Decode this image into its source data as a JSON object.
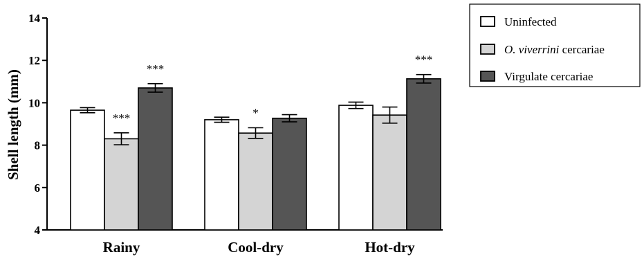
{
  "chart_data": {
    "type": "bar",
    "categories": [
      "Rainy",
      "Cool-dry",
      "Hot-dry"
    ],
    "ylabel": "Shell length (mm)",
    "ylim": [
      4,
      14
    ],
    "yticks": [
      4,
      6,
      8,
      10,
      12,
      14
    ],
    "grid": false,
    "legend_position": "top-right",
    "series": [
      {
        "name": "Uninfected",
        "name_italic": "",
        "name_rest": "Uninfected",
        "color": "#ffffff",
        "values": [
          9.65,
          9.2,
          9.88
        ],
        "errors": [
          0.12,
          0.12,
          0.15
        ],
        "significance": [
          "",
          "",
          ""
        ]
      },
      {
        "name": "O. viverrini cercariae",
        "name_italic": "O. viverrini",
        "name_rest": " cercariae",
        "color": "#d4d4d4",
        "values": [
          8.3,
          8.57,
          9.42
        ],
        "errors": [
          0.28,
          0.25,
          0.38
        ],
        "significance": [
          "***",
          "*",
          ""
        ]
      },
      {
        "name": "Virgulate cercariae",
        "name_italic": "",
        "name_rest": "Virgulate cercariae",
        "color": "#555555",
        "values": [
          10.7,
          9.27,
          11.13
        ],
        "errors": [
          0.2,
          0.17,
          0.2
        ],
        "significance": [
          "***",
          "",
          "***"
        ]
      }
    ]
  }
}
